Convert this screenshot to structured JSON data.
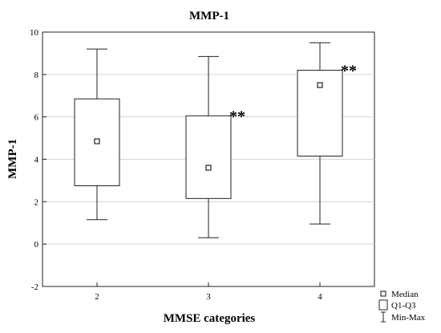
{
  "chart_data": {
    "type": "boxplot",
    "title": "MMP-1",
    "xlabel": "MMSE categories",
    "ylabel": "MMP-1",
    "ylim": [
      -2,
      10
    ],
    "yticks": [
      -2,
      0,
      2,
      4,
      6,
      8,
      10
    ],
    "grid": true,
    "legend_position": "bottom-right, outside plot",
    "categories": [
      "2",
      "3",
      "4"
    ],
    "boxes": [
      {
        "category": "2",
        "min": 1.15,
        "q1": 2.75,
        "median": 4.85,
        "q3": 6.85,
        "max": 9.2,
        "annotation": ""
      },
      {
        "category": "3",
        "min": 0.3,
        "q1": 2.15,
        "median": 3.6,
        "q3": 6.05,
        "max": 8.85,
        "annotation": "**"
      },
      {
        "category": "4",
        "min": 0.95,
        "q1": 4.15,
        "median": 7.5,
        "q3": 8.2,
        "max": 9.5,
        "annotation": "**"
      }
    ],
    "legend": [
      {
        "symbol": "median-square",
        "label": "Median"
      },
      {
        "symbol": "box",
        "label": "Q1-Q3"
      },
      {
        "symbol": "whisker",
        "label": "Min-Max"
      }
    ]
  }
}
